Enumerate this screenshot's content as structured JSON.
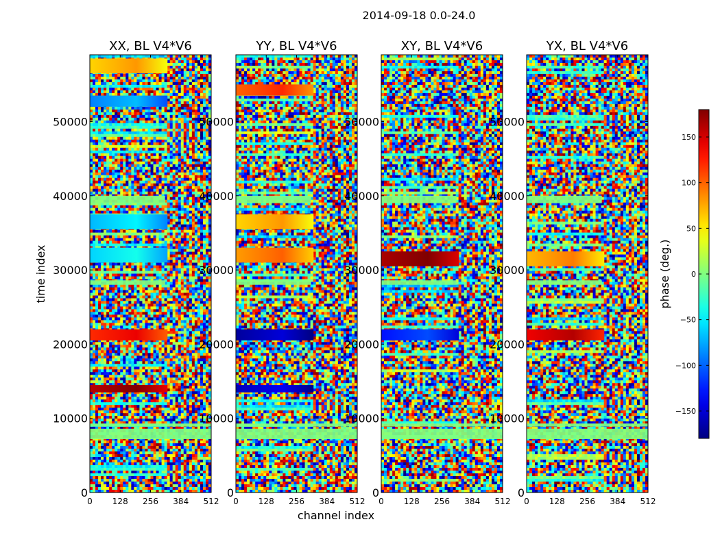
{
  "chart_data": {
    "type": "heatmap",
    "suptitle": "2014-09-18 0.0-24.0",
    "xlabel": "channel index",
    "ylabel": "time index",
    "xlim": [
      0,
      512
    ],
    "ylim": [
      0,
      59000
    ],
    "x_ticks": [
      "0",
      "128",
      "256",
      "384",
      "512"
    ],
    "y_ticks": [
      "0",
      "10000",
      "20000",
      "30000",
      "40000",
      "50000"
    ],
    "colorbar": {
      "label": "phase (deg.)",
      "range": [
        -180,
        180
      ],
      "ticks": [
        "150",
        "100",
        "50",
        "0",
        "−50",
        "−100",
        "−150"
      ],
      "colormap": "jet"
    },
    "panels": [
      {
        "title": "XX, BL V4*V6",
        "bands": [
          {
            "start": 31000,
            "end": 33000,
            "phase": -60
          },
          {
            "start": 35500,
            "end": 37500,
            "phase": -70
          },
          {
            "start": 20500,
            "end": 22000,
            "phase": 120
          },
          {
            "start": 13500,
            "end": 14500,
            "phase": 160
          },
          {
            "start": 52000,
            "end": 53500,
            "phase": -90
          },
          {
            "start": 56500,
            "end": 58500,
            "phase": 60
          }
        ]
      },
      {
        "title": "YY, BL V4*V6",
        "bands": [
          {
            "start": 31000,
            "end": 33000,
            "phase": 80
          },
          {
            "start": 35500,
            "end": 37500,
            "phase": 60
          },
          {
            "start": 20500,
            "end": 22000,
            "phase": -170
          },
          {
            "start": 13500,
            "end": 14500,
            "phase": -160
          },
          {
            "start": 53500,
            "end": 55000,
            "phase": 100
          }
        ]
      },
      {
        "title": "XY, BL V4*V6",
        "bands": [
          {
            "start": 30500,
            "end": 32500,
            "phase": 165
          },
          {
            "start": 20500,
            "end": 22000,
            "phase": -130
          }
        ]
      },
      {
        "title": "YX, BL V4*V6",
        "bands": [
          {
            "start": 30500,
            "end": 32500,
            "phase": 70
          },
          {
            "start": 20500,
            "end": 22000,
            "phase": 140
          }
        ]
      }
    ]
  }
}
